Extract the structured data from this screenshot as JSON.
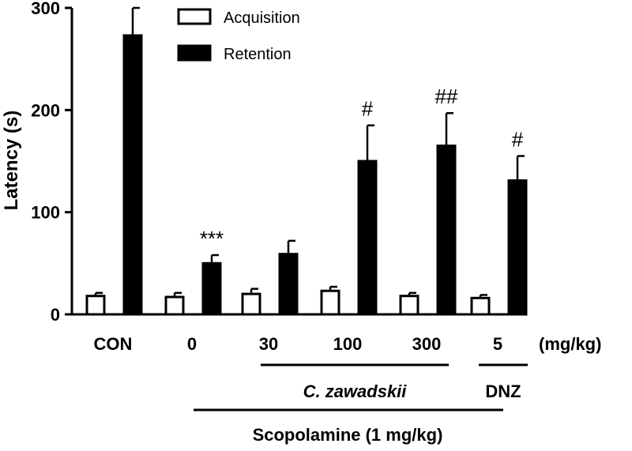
{
  "chart_data": {
    "type": "bar",
    "ylabel": "Latency (s)",
    "ylim": [
      0,
      300
    ],
    "yticks": [
      0,
      100,
      200,
      300
    ],
    "categories": [
      "CON",
      "0",
      "30",
      "100",
      "300",
      "5"
    ],
    "unit_label": "(mg/kg)",
    "series": [
      {
        "name": "Acquisition",
        "fill": "#ffffff",
        "values": [
          18,
          17,
          20,
          23,
          18,
          16
        ],
        "errors": [
          3,
          4,
          5,
          4,
          3,
          3
        ]
      },
      {
        "name": "Retention",
        "fill": "#000000",
        "values": [
          273,
          50,
          59,
          150,
          165,
          131
        ],
        "errors": [
          27,
          8,
          13,
          35,
          32,
          24
        ]
      }
    ],
    "significance": [
      "",
      "***",
      "",
      "#",
      "##",
      "#"
    ],
    "groups": {
      "c_zawadskii": "C. zawadskii",
      "dnz": "DNZ",
      "scopolamine": "Scopolamine (1 mg/kg)"
    },
    "legend_position": "top-center"
  }
}
